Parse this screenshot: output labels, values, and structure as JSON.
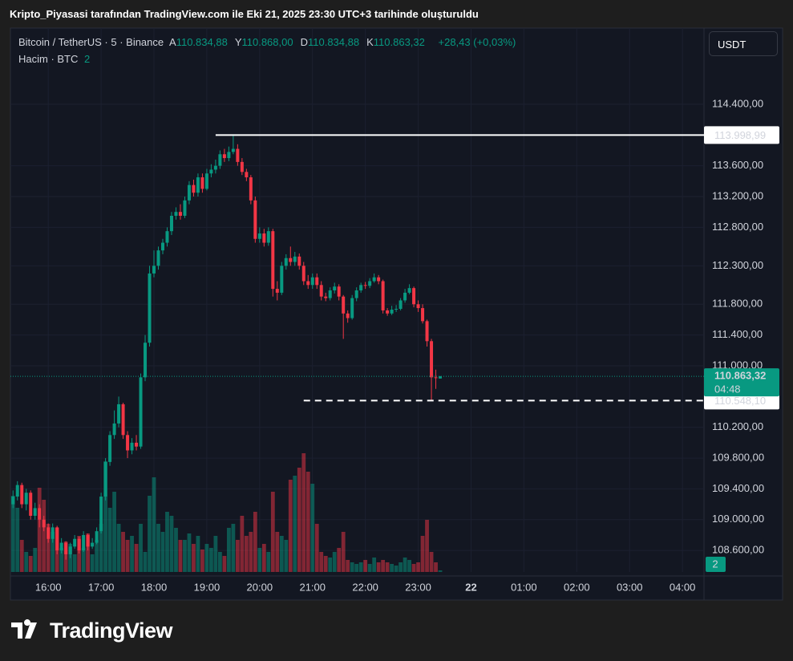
{
  "header": {
    "title": "Kripto_Piyasasi tarafından TradingView.com ile Eki 21, 2025 23:30 UTC+3 tarihinde oluşturuldu"
  },
  "legend": {
    "symbol": "Bitcoin / TetherUS · 5 · Binance",
    "items": [
      {
        "key": "A",
        "value": "110.834,88"
      },
      {
        "key": "Y",
        "value": "110.868,00"
      },
      {
        "key": "D",
        "value": "110.834,88"
      },
      {
        "key": "K",
        "value": "110.863,32"
      }
    ],
    "change": "+28,43 (+0,03%)",
    "volume_name": "Hacim · BTC",
    "volume_value": "2"
  },
  "currency_button": "USDT",
  "footer": {
    "brand": "TradingView"
  },
  "chart_data": {
    "type": "candlestick",
    "up_color": "#089981",
    "down_color": "#f23645",
    "ylim": [
      108320,
      115390
    ],
    "yticks": [
      {
        "value": 114400,
        "label": "114.400,00"
      },
      {
        "value": 113600,
        "label": "113.600,00"
      },
      {
        "value": 113200,
        "label": "113.200,00"
      },
      {
        "value": 112800,
        "label": "112.800,00"
      },
      {
        "value": 112300,
        "label": "112.300,00"
      },
      {
        "value": 111800,
        "label": "111.800,00"
      },
      {
        "value": 111400,
        "label": "111.400,00"
      },
      {
        "value": 111000,
        "label": "111.000,00"
      },
      {
        "value": 110200,
        "label": "110.200,00"
      },
      {
        "value": 109800,
        "label": "109.800,00"
      },
      {
        "value": 109400,
        "label": "109.400,00"
      },
      {
        "value": 109000,
        "label": "109.000,00"
      },
      {
        "value": 108600,
        "label": "108.600,00"
      }
    ],
    "xticks": [
      {
        "value": 8,
        "label": "16:00"
      },
      {
        "value": 20,
        "label": "17:00"
      },
      {
        "value": 32,
        "label": "18:00"
      },
      {
        "value": 44,
        "label": "19:00"
      },
      {
        "value": 56,
        "label": "20:00"
      },
      {
        "value": 68,
        "label": "21:00"
      },
      {
        "value": 80,
        "label": "22:00"
      },
      {
        "value": 92,
        "label": "23:00"
      },
      {
        "value": 104,
        "label": "22",
        "bold": true
      },
      {
        "value": 116,
        "label": "01:00"
      },
      {
        "value": 128,
        "label": "02:00"
      },
      {
        "value": 140,
        "label": "03:00"
      },
      {
        "value": 152,
        "label": "04:00"
      }
    ],
    "xlim": [
      -0.3,
      155
    ],
    "grid": true,
    "candles": [
      [
        109200,
        109380,
        109150,
        109300
      ],
      [
        109300,
        109500,
        109250,
        109450
      ],
      [
        109450,
        109480,
        109150,
        109200
      ],
      [
        109200,
        109400,
        109120,
        109350
      ],
      [
        109350,
        109380,
        109000,
        109050
      ],
      [
        109050,
        109220,
        109000,
        109150
      ],
      [
        109150,
        109200,
        108900,
        109000
      ],
      [
        109000,
        109050,
        108850,
        108900
      ],
      [
        108900,
        108950,
        108700,
        108750
      ],
      [
        108750,
        108950,
        108700,
        108900
      ],
      [
        108900,
        108920,
        108550,
        108600
      ],
      [
        108600,
        108760,
        108560,
        108700
      ],
      [
        108700,
        108720,
        108480,
        108550
      ],
      [
        108550,
        108700,
        108500,
        108650
      ],
      [
        108650,
        108800,
        108620,
        108750
      ],
      [
        108750,
        108780,
        108560,
        108600
      ],
      [
        108600,
        108850,
        108580,
        108800
      ],
      [
        108800,
        108820,
        108600,
        108650
      ],
      [
        108650,
        108760,
        108620,
        108700
      ],
      [
        108700,
        108900,
        108680,
        108850
      ],
      [
        108850,
        109350,
        108820,
        109300
      ],
      [
        109300,
        109800,
        109250,
        109750
      ],
      [
        109750,
        110150,
        109700,
        110100
      ],
      [
        110100,
        110420,
        110050,
        110250
      ],
      [
        110250,
        110600,
        110200,
        110500
      ],
      [
        110500,
        110520,
        110050,
        110100
      ],
      [
        110100,
        110150,
        109800,
        109900
      ],
      [
        109900,
        110060,
        109850,
        110000
      ],
      [
        110000,
        110100,
        109900,
        109950
      ],
      [
        109950,
        110900,
        109920,
        110850
      ],
      [
        110850,
        111400,
        110800,
        111300
      ],
      [
        111300,
        112300,
        111250,
        112200
      ],
      [
        112200,
        112500,
        112150,
        112300
      ],
      [
        112300,
        112550,
        112250,
        112500
      ],
      [
        112500,
        112650,
        112450,
        112600
      ],
      [
        112600,
        112800,
        112550,
        112750
      ],
      [
        112750,
        113000,
        112700,
        112950
      ],
      [
        112950,
        113060,
        112900,
        113000
      ],
      [
        113000,
        113100,
        112900,
        112950
      ],
      [
        112950,
        113200,
        112920,
        113150
      ],
      [
        113150,
        113400,
        113100,
        113350
      ],
      [
        113350,
        113420,
        113200,
        113250
      ],
      [
        113250,
        113500,
        113200,
        113450
      ],
      [
        113450,
        113500,
        113250,
        113300
      ],
      [
        113300,
        113560,
        113280,
        113500
      ],
      [
        113500,
        113620,
        113450,
        113550
      ],
      [
        113550,
        113680,
        113500,
        113600
      ],
      [
        113600,
        113800,
        113560,
        113750
      ],
      [
        113750,
        113820,
        113650,
        113700
      ],
      [
        113700,
        113850,
        113660,
        113780
      ],
      [
        113780,
        113998.99,
        113750,
        113820
      ],
      [
        113820,
        113880,
        113600,
        113650
      ],
      [
        113650,
        113700,
        113480,
        113520
      ],
      [
        113520,
        113560,
        113400,
        113450
      ],
      [
        113450,
        113480,
        113100,
        113150
      ],
      [
        113150,
        113200,
        112600,
        112650
      ],
      [
        112650,
        112800,
        112600,
        112720
      ],
      [
        112720,
        112780,
        112550,
        112600
      ],
      [
        112600,
        112800,
        112560,
        112750
      ],
      [
        112750,
        112780,
        111900,
        112000
      ],
      [
        112000,
        112100,
        111850,
        111950
      ],
      [
        111950,
        112350,
        111920,
        112300
      ],
      [
        112300,
        112450,
        112250,
        112400
      ],
      [
        112400,
        112550,
        112300,
        112350
      ],
      [
        112350,
        112480,
        112300,
        112420
      ],
      [
        112420,
        112460,
        112250,
        112300
      ],
      [
        112300,
        112350,
        112050,
        112100
      ],
      [
        112100,
        112180,
        112000,
        112050
      ],
      [
        112050,
        112200,
        112000,
        112150
      ],
      [
        112150,
        112200,
        112000,
        112050
      ],
      [
        112050,
        112100,
        111850,
        111900
      ],
      [
        111900,
        111950,
        111840,
        111880
      ],
      [
        111880,
        112020,
        111850,
        111980
      ],
      [
        111980,
        112080,
        111940,
        112030
      ],
      [
        112030,
        112060,
        111850,
        111900
      ],
      [
        111900,
        111920,
        111350,
        111680
      ],
      [
        111680,
        111720,
        111560,
        111620
      ],
      [
        111620,
        111920,
        111600,
        111880
      ],
      [
        111880,
        112020,
        111840,
        111980
      ],
      [
        111980,
        112080,
        111950,
        112050
      ],
      [
        112050,
        112090,
        112000,
        112040
      ],
      [
        112040,
        112140,
        112010,
        112100
      ],
      [
        112100,
        112200,
        112080,
        112150
      ],
      [
        112150,
        112180,
        112060,
        112100
      ],
      [
        112100,
        112120,
        111680,
        111720
      ],
      [
        111720,
        111750,
        111650,
        111680
      ],
      [
        111680,
        111780,
        111660,
        111730
      ],
      [
        111730,
        111790,
        111700,
        111740
      ],
      [
        111740,
        111880,
        111720,
        111850
      ],
      [
        111850,
        112000,
        111820,
        111950
      ],
      [
        111950,
        112060,
        111930,
        112010
      ],
      [
        112010,
        112030,
        111760,
        111800
      ],
      [
        111800,
        111850,
        111700,
        111750
      ],
      [
        111750,
        111800,
        111550,
        111580
      ],
      [
        111580,
        111600,
        111250,
        111320
      ],
      [
        111320,
        111350,
        110548.1,
        110850
      ],
      [
        110850,
        110950,
        110700,
        110840
      ],
      [
        110834.88,
        110868,
        110834.88,
        110863.32
      ]
    ],
    "vlim": [
      0,
      200
    ],
    "volumes": [
      95,
      80,
      40,
      25,
      20,
      30,
      105,
      90,
      60,
      50,
      55,
      30,
      38,
      35,
      22,
      45,
      30,
      48,
      22,
      40,
      60,
      138,
      80,
      100,
      60,
      50,
      40,
      45,
      35,
      60,
      25,
      95,
      118,
      60,
      50,
      75,
      70,
      55,
      40,
      40,
      48,
      35,
      45,
      28,
      35,
      30,
      45,
      25,
      20,
      55,
      60,
      40,
      70,
      45,
      50,
      75,
      30,
      35,
      25,
      100,
      50,
      45,
      40,
      115,
      120,
      130,
      148,
      125,
      110,
      60,
      25,
      20,
      18,
      25,
      30,
      50,
      15,
      12,
      10,
      12,
      15,
      10,
      18,
      12,
      15,
      12,
      10,
      8,
      12,
      18,
      15,
      10,
      12,
      45,
      65,
      25,
      12,
      2
    ],
    "levels": [
      {
        "value": 113998.99,
        "label": "113.998,99",
        "style": "solid",
        "start_index": 46
      },
      {
        "value": 110548.1,
        "label": "110.548,10",
        "style": "dashed",
        "start_index": 66
      }
    ],
    "last_price": {
      "value": 110863.32,
      "label": "110.863,32",
      "countdown": "04:48"
    },
    "volume_label": "2"
  }
}
